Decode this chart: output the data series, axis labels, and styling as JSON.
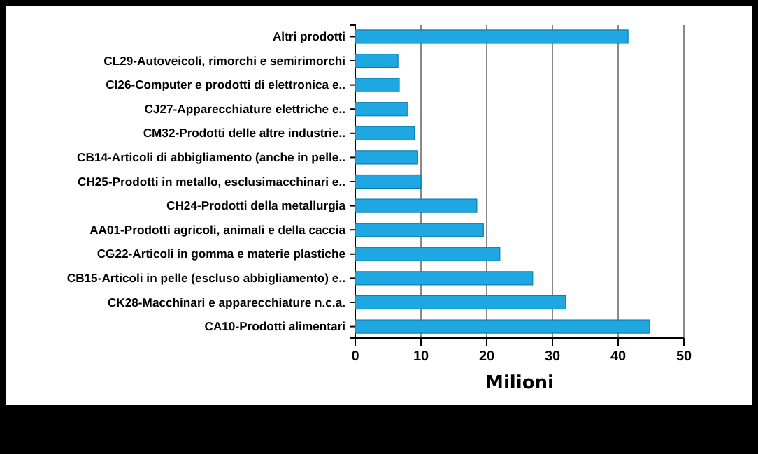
{
  "chart_data": {
    "type": "bar",
    "orientation": "horizontal",
    "xlabel": "Milioni",
    "categories": [
      "Altri prodotti",
      "CL29-Autoveicoli, rimorchi e semirimorchi",
      "CI26-Computer e prodotti di elettronica e..",
      "CJ27-Apparecchiature elettriche e..",
      "CM32-Prodotti delle altre industrie..",
      "CB14-Articoli di abbigliamento (anche in pelle..",
      "CH25-Prodotti in metallo, esclusimacchinari e..",
      "CH24-Prodotti della metallurgia",
      "AA01-Prodotti agricoli, animali e della caccia",
      "CG22-Articoli in gomma e materie plastiche",
      "CB15-Articoli in pelle (escluso abbigliamento) e..",
      "CK28-Macchinari e apparecchiature n.c.a.",
      "CA10-Prodotti alimentari"
    ],
    "values": [
      41.5,
      6.5,
      6.7,
      8,
      9,
      9.5,
      10,
      18.5,
      19.5,
      22,
      27,
      32,
      44.8
    ],
    "color": "#1ea7e1",
    "xlim": [
      0,
      50
    ],
    "xticks": [
      0,
      10,
      20,
      30,
      40,
      50
    ],
    "grid": "x"
  }
}
